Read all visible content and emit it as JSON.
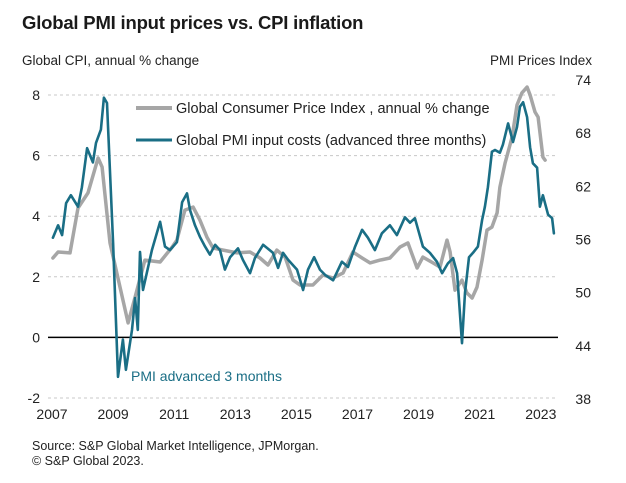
{
  "chart_data": {
    "type": "line",
    "title": "Global PMI input prices vs. CPI inflation",
    "ylabel_left": "Global  CPI, annual % change",
    "ylabel_right": "PMI Prices Index",
    "xlabel": "",
    "xlim": [
      2007,
      2023.9
    ],
    "ylim_left": [
      -2,
      8.5
    ],
    "ylim_right": [
      38,
      74
    ],
    "x_ticks": [
      "2007",
      "2009",
      "2011",
      "2013",
      "2015",
      "2017",
      "2019",
      "2021",
      "2023"
    ],
    "x_tick_values": [
      2007,
      2009,
      2011,
      2013,
      2015,
      2017,
      2019,
      2021,
      2023
    ],
    "y_ticks_left": [
      "-2",
      "0",
      "2",
      "4",
      "6",
      "8"
    ],
    "y_tick_values_left": [
      -2,
      0,
      2,
      4,
      6,
      8
    ],
    "y_ticks_right": [
      "38",
      "44",
      "50",
      "56",
      "62",
      "68",
      "74"
    ],
    "y_tick_values_right": [
      38,
      44,
      50,
      56,
      62,
      68,
      74
    ],
    "grid": true,
    "grid_style": "dashed horizontal",
    "zero_line": 0,
    "legend_position": "top-center",
    "annotation": "PMI advanced 3 months",
    "series": [
      {
        "name": "Global Consumer Price Index , annual % change",
        "axis": "left",
        "color": "#a6a6a6",
        "points": [
          [
            2007.03,
            2.62
          ],
          [
            2007.2,
            2.82
          ],
          [
            2007.59,
            2.79
          ],
          [
            2007.85,
            4.27
          ],
          [
            2008.18,
            4.77
          ],
          [
            2008.51,
            5.92
          ],
          [
            2008.64,
            5.62
          ],
          [
            2008.9,
            3.12
          ],
          [
            2009.49,
            0.48
          ],
          [
            2009.72,
            1.33
          ],
          [
            2010.04,
            2.55
          ],
          [
            2010.54,
            2.49
          ],
          [
            2010.93,
            2.98
          ],
          [
            2011.09,
            3.21
          ],
          [
            2011.35,
            4.2
          ],
          [
            2011.62,
            4.3
          ],
          [
            2011.84,
            3.87
          ],
          [
            2012.07,
            3.31
          ],
          [
            2012.27,
            2.95
          ],
          [
            2012.6,
            2.88
          ],
          [
            2013.06,
            2.79
          ],
          [
            2013.48,
            2.82
          ],
          [
            2013.81,
            2.62
          ],
          [
            2014.07,
            2.39
          ],
          [
            2014.36,
            2.88
          ],
          [
            2014.63,
            2.65
          ],
          [
            2014.89,
            1.89
          ],
          [
            2015.12,
            1.73
          ],
          [
            2015.54,
            1.73
          ],
          [
            2015.87,
            2.06
          ],
          [
            2016.2,
            1.96
          ],
          [
            2016.53,
            2.13
          ],
          [
            2016.85,
            2.82
          ],
          [
            2017.15,
            2.62
          ],
          [
            2017.41,
            2.46
          ],
          [
            2017.74,
            2.55
          ],
          [
            2018.06,
            2.62
          ],
          [
            2018.39,
            2.98
          ],
          [
            2018.65,
            3.12
          ],
          [
            2018.95,
            2.29
          ],
          [
            2019.14,
            2.65
          ],
          [
            2019.47,
            2.46
          ],
          [
            2019.7,
            2.32
          ],
          [
            2019.93,
            3.21
          ],
          [
            2020.03,
            2.82
          ],
          [
            2020.19,
            1.56
          ],
          [
            2020.42,
            1.89
          ],
          [
            2020.58,
            1.47
          ],
          [
            2020.75,
            1.3
          ],
          [
            2020.91,
            1.66
          ],
          [
            2021.08,
            2.55
          ],
          [
            2021.24,
            3.54
          ],
          [
            2021.4,
            3.64
          ],
          [
            2021.57,
            4.11
          ],
          [
            2021.66,
            4.96
          ],
          [
            2021.83,
            5.76
          ],
          [
            2022.06,
            6.61
          ],
          [
            2022.22,
            7.67
          ],
          [
            2022.38,
            8.07
          ],
          [
            2022.55,
            8.26
          ],
          [
            2022.65,
            8.0
          ],
          [
            2022.81,
            7.44
          ],
          [
            2022.91,
            7.27
          ],
          [
            2023.07,
            5.95
          ],
          [
            2023.14,
            5.85
          ]
        ]
      },
      {
        "name": "Global PMI input costs (advanced three months)",
        "axis": "right",
        "color": "#1a6e85",
        "points": [
          [
            2007.03,
            56.2
          ],
          [
            2007.2,
            57.6
          ],
          [
            2007.33,
            56.5
          ],
          [
            2007.46,
            60.1
          ],
          [
            2007.62,
            61.0
          ],
          [
            2007.85,
            59.7
          ],
          [
            2007.98,
            61.9
          ],
          [
            2008.15,
            66.3
          ],
          [
            2008.34,
            64.7
          ],
          [
            2008.44,
            66.9
          ],
          [
            2008.6,
            68.4
          ],
          [
            2008.7,
            72.0
          ],
          [
            2008.8,
            71.4
          ],
          [
            2009.0,
            55.6
          ],
          [
            2009.16,
            40.5
          ],
          [
            2009.32,
            44.7
          ],
          [
            2009.42,
            41.3
          ],
          [
            2009.62,
            45.8
          ],
          [
            2009.72,
            49.4
          ],
          [
            2009.81,
            45.8
          ],
          [
            2009.88,
            54.6
          ],
          [
            2009.98,
            50.3
          ],
          [
            2010.27,
            54.8
          ],
          [
            2010.54,
            58.0
          ],
          [
            2010.7,
            55.2
          ],
          [
            2010.86,
            54.8
          ],
          [
            2011.09,
            55.7
          ],
          [
            2011.26,
            60.2
          ],
          [
            2011.42,
            61.2
          ],
          [
            2011.52,
            59.3
          ],
          [
            2011.68,
            57.6
          ],
          [
            2011.84,
            56.3
          ],
          [
            2012.01,
            55.2
          ],
          [
            2012.17,
            54.3
          ],
          [
            2012.34,
            55.4
          ],
          [
            2012.5,
            54.8
          ],
          [
            2012.66,
            52.6
          ],
          [
            2012.83,
            54.0
          ],
          [
            2013.09,
            55.0
          ],
          [
            2013.25,
            53.7
          ],
          [
            2013.48,
            52.2
          ],
          [
            2013.64,
            53.9
          ],
          [
            2013.91,
            55.4
          ],
          [
            2014.23,
            54.5
          ],
          [
            2014.4,
            52.8
          ],
          [
            2014.56,
            54.5
          ],
          [
            2014.73,
            53.7
          ],
          [
            2015.02,
            52.6
          ],
          [
            2015.22,
            50.3
          ],
          [
            2015.38,
            52.6
          ],
          [
            2015.58,
            54.0
          ],
          [
            2015.77,
            52.6
          ],
          [
            2015.94,
            52.0
          ],
          [
            2016.2,
            51.4
          ],
          [
            2016.49,
            53.5
          ],
          [
            2016.69,
            52.9
          ],
          [
            2016.92,
            55.2
          ],
          [
            2017.15,
            57.1
          ],
          [
            2017.34,
            56.2
          ],
          [
            2017.57,
            54.8
          ],
          [
            2017.8,
            56.7
          ],
          [
            2018.06,
            57.6
          ],
          [
            2018.29,
            56.5
          ],
          [
            2018.55,
            58.5
          ],
          [
            2018.72,
            57.9
          ],
          [
            2018.88,
            58.4
          ],
          [
            2019.14,
            55.2
          ],
          [
            2019.37,
            54.5
          ],
          [
            2019.6,
            53.5
          ],
          [
            2019.77,
            52.2
          ],
          [
            2019.96,
            53.3
          ],
          [
            2020.13,
            53.9
          ],
          [
            2020.26,
            52.2
          ],
          [
            2020.42,
            44.3
          ],
          [
            2020.52,
            50.0
          ],
          [
            2020.65,
            54.0
          ],
          [
            2020.78,
            54.5
          ],
          [
            2020.94,
            55.2
          ],
          [
            2021.08,
            58.2
          ],
          [
            2021.17,
            59.7
          ],
          [
            2021.27,
            61.9
          ],
          [
            2021.4,
            65.9
          ],
          [
            2021.5,
            66.1
          ],
          [
            2021.66,
            65.8
          ],
          [
            2021.76,
            66.7
          ],
          [
            2021.93,
            69.1
          ],
          [
            2022.09,
            67.0
          ],
          [
            2022.22,
            68.7
          ],
          [
            2022.32,
            71.0
          ],
          [
            2022.42,
            71.5
          ],
          [
            2022.55,
            69.8
          ],
          [
            2022.65,
            66.4
          ],
          [
            2022.74,
            64.6
          ],
          [
            2022.88,
            64.1
          ],
          [
            2022.97,
            59.7
          ],
          [
            2023.07,
            61.0
          ],
          [
            2023.24,
            58.8
          ],
          [
            2023.37,
            58.4
          ],
          [
            2023.43,
            56.7
          ]
        ]
      }
    ]
  },
  "footer": {
    "source": "Source: S&P Global Market Intelligence, JPMorgan.",
    "copyright": "© S&P Global 2023."
  }
}
